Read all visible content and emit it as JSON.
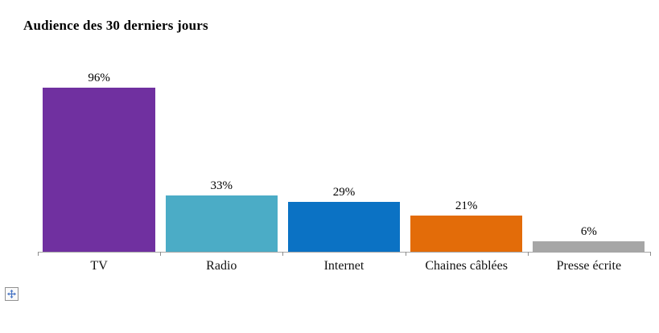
{
  "chart": {
    "title": "Audience des 30 derniers jours"
  },
  "chart_data": {
    "type": "bar",
    "title": "Audience des 30 derniers jours",
    "categories": [
      "TV",
      "Radio",
      "Internet",
      "Chaines câblées",
      "Presse écrite"
    ],
    "values": [
      96,
      33,
      29,
      21,
      6
    ],
    "data_labels": [
      "96%",
      "33%",
      "29%",
      "21%",
      "6%"
    ],
    "bar_colors": [
      "#7030A0",
      "#4BACC6",
      "#0B72C4",
      "#E36C09",
      "#A6A6A6"
    ],
    "xlabel": "",
    "ylabel": "",
    "ylim": [
      0,
      100
    ],
    "grid": false,
    "legend": false,
    "data_labels_shown": true,
    "axis_line_color": "#A6A6A6",
    "tick_color": "#8C8C8C",
    "text_color": "#000000",
    "background_color": "#FFFFFF"
  },
  "icons": {
    "object_anchor": "move-handle-icon"
  }
}
